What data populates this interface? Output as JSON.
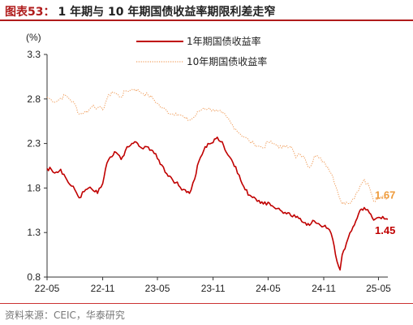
{
  "header": {
    "figure_label": "图表53：",
    "title": "1 年期与 10 年期国债收益率期限利差走窄"
  },
  "footer": {
    "source": "资料来源：CEIC，华泰研究"
  },
  "colors": {
    "series_1y": "#c00000",
    "series_10y": "#f0a060",
    "label_10y": "#ee9a3a",
    "label_1y": "#c00000",
    "rule": "#b01c1c"
  },
  "chart_data": {
    "type": "line",
    "title": "",
    "ylabel": "(%)",
    "xlabel": "",
    "ylim": [
      0.8,
      3.3
    ],
    "yticks": [
      "3.3",
      "2.8",
      "2.3",
      "1.8",
      "1.3",
      "0.8"
    ],
    "yticks_values": [
      3.3,
      2.8,
      2.3,
      1.8,
      1.3,
      0.8
    ],
    "xticks": [
      "22-05",
      "22-11",
      "23-05",
      "23-11",
      "24-05",
      "24-11",
      "25-05"
    ],
    "x_range": [
      "2022-05",
      "2025-06"
    ],
    "legend_position": "top-center",
    "grid": false,
    "series": [
      {
        "name": "1年期国债收益率",
        "style": "solid",
        "end_label": "1.45",
        "points": [
          [
            "2022-05-01",
            2.02
          ],
          [
            "2022-05-15",
            2.01
          ],
          [
            "2022-06-01",
            1.98
          ],
          [
            "2022-06-15",
            2.01
          ],
          [
            "2022-07-01",
            1.92
          ],
          [
            "2022-07-15",
            1.84
          ],
          [
            "2022-08-01",
            1.78
          ],
          [
            "2022-08-15",
            1.69
          ],
          [
            "2022-09-01",
            1.76
          ],
          [
            "2022-09-15",
            1.8
          ],
          [
            "2022-10-01",
            1.77
          ],
          [
            "2022-10-15",
            1.74
          ],
          [
            "2022-11-01",
            1.85
          ],
          [
            "2022-11-15",
            2.08
          ],
          [
            "2022-12-01",
            2.15
          ],
          [
            "2022-12-15",
            2.2
          ],
          [
            "2023-01-01",
            2.12
          ],
          [
            "2023-01-15",
            2.22
          ],
          [
            "2023-02-01",
            2.28
          ],
          [
            "2023-02-15",
            2.32
          ],
          [
            "2023-03-01",
            2.27
          ],
          [
            "2023-03-15",
            2.24
          ],
          [
            "2023-04-01",
            2.26
          ],
          [
            "2023-04-15",
            2.22
          ],
          [
            "2023-05-01",
            2.13
          ],
          [
            "2023-05-15",
            2.06
          ],
          [
            "2023-06-01",
            1.96
          ],
          [
            "2023-06-15",
            1.92
          ],
          [
            "2023-07-01",
            1.86
          ],
          [
            "2023-07-15",
            1.81
          ],
          [
            "2023-08-01",
            1.78
          ],
          [
            "2023-08-15",
            1.74
          ],
          [
            "2023-09-01",
            1.9
          ],
          [
            "2023-09-15",
            2.1
          ],
          [
            "2023-10-01",
            2.22
          ],
          [
            "2023-10-15",
            2.3
          ],
          [
            "2023-11-01",
            2.31
          ],
          [
            "2023-11-15",
            2.37
          ],
          [
            "2023-12-01",
            2.32
          ],
          [
            "2023-12-15",
            2.2
          ],
          [
            "2024-01-01",
            2.12
          ],
          [
            "2024-01-15",
            2.04
          ],
          [
            "2024-02-01",
            1.88
          ],
          [
            "2024-02-15",
            1.78
          ],
          [
            "2024-03-01",
            1.72
          ],
          [
            "2024-03-15",
            1.7
          ],
          [
            "2024-04-01",
            1.66
          ],
          [
            "2024-04-15",
            1.62
          ],
          [
            "2024-05-01",
            1.64
          ],
          [
            "2024-05-15",
            1.6
          ],
          [
            "2024-06-01",
            1.57
          ],
          [
            "2024-06-15",
            1.54
          ],
          [
            "2024-07-01",
            1.51
          ],
          [
            "2024-07-15",
            1.49
          ],
          [
            "2024-08-01",
            1.47
          ],
          [
            "2024-08-15",
            1.46
          ],
          [
            "2024-09-01",
            1.41
          ],
          [
            "2024-09-15",
            1.38
          ],
          [
            "2024-10-01",
            1.43
          ],
          [
            "2024-10-15",
            1.4
          ],
          [
            "2024-11-01",
            1.37
          ],
          [
            "2024-11-10",
            1.35
          ],
          [
            "2024-11-20",
            1.33
          ],
          [
            "2024-12-01",
            1.22
          ],
          [
            "2024-12-10",
            1.05
          ],
          [
            "2024-12-20",
            0.92
          ],
          [
            "2024-12-25",
            0.88
          ],
          [
            "2025-01-01",
            1.05
          ],
          [
            "2025-01-15",
            1.18
          ],
          [
            "2025-02-01",
            1.32
          ],
          [
            "2025-02-15",
            1.43
          ],
          [
            "2025-03-01",
            1.55
          ],
          [
            "2025-03-15",
            1.58
          ],
          [
            "2025-04-01",
            1.52
          ],
          [
            "2025-04-15",
            1.44
          ],
          [
            "2025-05-01",
            1.47
          ],
          [
            "2025-05-15",
            1.48
          ],
          [
            "2025-06-01",
            1.45
          ]
        ]
      },
      {
        "name": "10年期国债收益率",
        "style": "dotted",
        "end_label": "1.67",
        "points": [
          [
            "2022-05-01",
            2.82
          ],
          [
            "2022-05-15",
            2.79
          ],
          [
            "2022-06-01",
            2.77
          ],
          [
            "2022-06-15",
            2.81
          ],
          [
            "2022-07-01",
            2.84
          ],
          [
            "2022-07-15",
            2.8
          ],
          [
            "2022-08-01",
            2.74
          ],
          [
            "2022-08-15",
            2.63
          ],
          [
            "2022-09-01",
            2.65
          ],
          [
            "2022-09-15",
            2.67
          ],
          [
            "2022-10-01",
            2.73
          ],
          [
            "2022-10-15",
            2.7
          ],
          [
            "2022-11-01",
            2.68
          ],
          [
            "2022-11-15",
            2.8
          ],
          [
            "2022-12-01",
            2.88
          ],
          [
            "2022-12-15",
            2.86
          ],
          [
            "2023-01-01",
            2.82
          ],
          [
            "2023-01-15",
            2.89
          ],
          [
            "2023-02-01",
            2.9
          ],
          [
            "2023-02-15",
            2.91
          ],
          [
            "2023-03-01",
            2.89
          ],
          [
            "2023-03-15",
            2.86
          ],
          [
            "2023-04-01",
            2.84
          ],
          [
            "2023-04-15",
            2.81
          ],
          [
            "2023-05-01",
            2.75
          ],
          [
            "2023-05-15",
            2.7
          ],
          [
            "2023-06-01",
            2.67
          ],
          [
            "2023-06-15",
            2.63
          ],
          [
            "2023-07-01",
            2.64
          ],
          [
            "2023-07-15",
            2.62
          ],
          [
            "2023-08-01",
            2.58
          ],
          [
            "2023-08-15",
            2.56
          ],
          [
            "2023-09-01",
            2.6
          ],
          [
            "2023-09-15",
            2.66
          ],
          [
            "2023-10-01",
            2.7
          ],
          [
            "2023-10-15",
            2.69
          ],
          [
            "2023-11-01",
            2.68
          ],
          [
            "2023-11-15",
            2.66
          ],
          [
            "2023-12-01",
            2.64
          ],
          [
            "2023-12-15",
            2.6
          ],
          [
            "2024-01-01",
            2.52
          ],
          [
            "2024-01-15",
            2.46
          ],
          [
            "2024-02-01",
            2.4
          ],
          [
            "2024-02-15",
            2.37
          ],
          [
            "2024-03-01",
            2.32
          ],
          [
            "2024-03-15",
            2.3
          ],
          [
            "2024-04-01",
            2.27
          ],
          [
            "2024-04-15",
            2.25
          ],
          [
            "2024-05-01",
            2.32
          ],
          [
            "2024-05-15",
            2.3
          ],
          [
            "2024-06-01",
            2.28
          ],
          [
            "2024-06-15",
            2.25
          ],
          [
            "2024-07-01",
            2.28
          ],
          [
            "2024-07-15",
            2.27
          ],
          [
            "2024-08-01",
            2.14
          ],
          [
            "2024-08-15",
            2.18
          ],
          [
            "2024-09-01",
            2.12
          ],
          [
            "2024-09-15",
            2.03
          ],
          [
            "2024-10-01",
            2.16
          ],
          [
            "2024-10-15",
            2.14
          ],
          [
            "2024-11-01",
            2.1
          ],
          [
            "2024-11-15",
            2.03
          ],
          [
            "2024-12-01",
            1.93
          ],
          [
            "2024-12-15",
            1.78
          ],
          [
            "2025-01-01",
            1.62
          ],
          [
            "2025-01-15",
            1.64
          ],
          [
            "2025-02-01",
            1.65
          ],
          [
            "2025-02-15",
            1.73
          ],
          [
            "2025-03-01",
            1.82
          ],
          [
            "2025-03-15",
            1.9
          ],
          [
            "2025-04-01",
            1.81
          ],
          [
            "2025-04-15",
            1.65
          ],
          [
            "2025-05-01",
            1.67
          ],
          [
            "2025-05-15",
            1.71
          ],
          [
            "2025-06-01",
            1.67
          ]
        ]
      }
    ]
  }
}
